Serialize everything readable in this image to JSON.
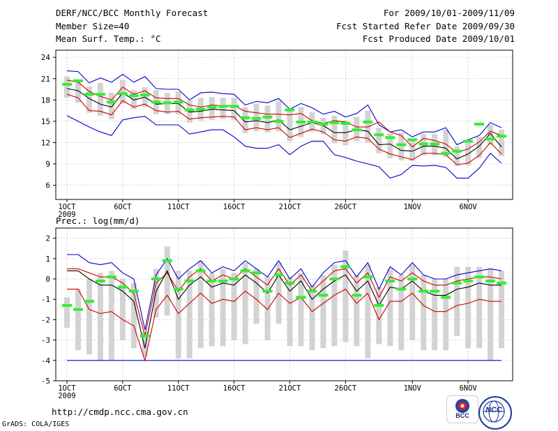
{
  "header": {
    "title": "DERF/NCC/BCC Monthly Forecast",
    "member_size": "Member Size=40",
    "variable": "Mean Surf. Temp.: °C",
    "period": "For 2009/10/01-2009/11/09",
    "started": "Fcst Started Refer Date 2009/09/30",
    "produced": "Fcst Produced Date 2009/10/01"
  },
  "footer": {
    "url": "http://cmdp.ncc.cma.gov.cn",
    "credit": "GrADS: COLA/IGES",
    "logo_bcc": "BCC",
    "logo_ncc": "NCC"
  },
  "colors": {
    "max": "#0000cc",
    "min": "#0000cc",
    "upper": "#cc0000",
    "lower": "#cc0000",
    "mean": "#000000",
    "box": "#d3d3d3",
    "marker": "#33ee33"
  },
  "chart_data": [
    {
      "type": "line",
      "title": "Mean Surf. Temp.: °C",
      "x": [
        1,
        2,
        3,
        4,
        5,
        6,
        7,
        8,
        9,
        10,
        11,
        12,
        13,
        14,
        15,
        16,
        17,
        18,
        19,
        20,
        21,
        22,
        23,
        24,
        25,
        26,
        27,
        28,
        29,
        30,
        31,
        32,
        33,
        34,
        35,
        36,
        37,
        38,
        39,
        40
      ],
      "xticks": [
        {
          "x": 1,
          "label": "1OCT"
        },
        {
          "x": 6,
          "label": "6OCT"
        },
        {
          "x": 11,
          "label": "11OCT"
        },
        {
          "x": 16,
          "label": "16OCT"
        },
        {
          "x": 21,
          "label": "21OCT"
        },
        {
          "x": 26,
          "label": "26OCT"
        },
        {
          "x": 32,
          "label": "1NOV"
        },
        {
          "x": 37,
          "label": "6NOV"
        }
      ],
      "xyear": "2009",
      "ylim": [
        4,
        25
      ],
      "yticks": [
        6,
        9,
        12,
        15,
        18,
        21,
        24
      ],
      "series": [
        {
          "name": "max",
          "values": [
            22.1,
            22.0,
            20.4,
            21.1,
            20.5,
            21.6,
            20.5,
            21.3,
            19.6,
            19.5,
            19.5,
            18.0,
            19.0,
            19.1,
            18.9,
            18.8,
            17.3,
            17.8,
            17.6,
            18.2,
            16.7,
            17.5,
            16.9,
            16.0,
            16.4,
            15.6,
            16.1,
            17.3,
            14.5,
            13.5,
            13.8,
            12.8,
            13.5,
            13.5,
            14.1,
            11.7,
            12.4,
            13.0,
            14.8,
            14.1
          ]
        },
        {
          "name": "upper",
          "values": [
            20.8,
            20.5,
            19.2,
            18.5,
            18.0,
            19.8,
            18.8,
            19.3,
            18.3,
            18.2,
            18.2,
            17.3,
            17.0,
            17.3,
            17.2,
            17.2,
            16.4,
            16.2,
            16.0,
            16.0,
            15.9,
            16.1,
            15.1,
            14.7,
            15.1,
            14.9,
            14.2,
            14.2,
            14.9,
            13.5,
            13.0,
            11.4,
            12.6,
            12.3,
            11.8,
            10.6,
            11.1,
            12.1,
            13.6,
            13.0
          ]
        },
        {
          "name": "mean",
          "values": [
            19.6,
            19.3,
            18.2,
            17.4,
            17.0,
            19.0,
            18.0,
            18.4,
            17.4,
            17.5,
            17.5,
            16.3,
            16.4,
            16.7,
            16.6,
            16.5,
            14.9,
            15.1,
            14.8,
            15.2,
            13.8,
            14.3,
            14.8,
            14.4,
            13.4,
            13.4,
            13.8,
            13.6,
            11.7,
            11.8,
            10.9,
            10.8,
            11.5,
            11.5,
            11.2,
            9.7,
            10.4,
            11.5,
            13.3,
            11.4
          ]
        },
        {
          "name": "lower",
          "values": [
            18.8,
            18.3,
            16.5,
            16.4,
            15.9,
            17.9,
            17.0,
            17.4,
            16.5,
            16.3,
            16.4,
            15.3,
            15.5,
            15.6,
            15.7,
            15.6,
            13.8,
            14.1,
            13.8,
            14.1,
            12.7,
            13.3,
            13.9,
            13.5,
            12.4,
            12.2,
            12.8,
            12.6,
            11.1,
            10.4,
            10.0,
            9.6,
            10.5,
            10.5,
            10.3,
            8.9,
            9.1,
            10.2,
            12.0,
            10.4
          ]
        },
        {
          "name": "min",
          "values": [
            15.8,
            15.0,
            14.2,
            13.5,
            13.0,
            15.2,
            15.5,
            15.7,
            14.5,
            14.5,
            14.5,
            13.2,
            13.5,
            13.8,
            13.8,
            12.8,
            11.5,
            11.2,
            11.2,
            11.7,
            10.3,
            11.5,
            12.2,
            12.2,
            10.3,
            9.9,
            9.4,
            9.0,
            8.6,
            7.0,
            7.5,
            8.8,
            8.7,
            8.8,
            8.5,
            7.0,
            7.0,
            8.4,
            10.5,
            9.1
          ]
        },
        {
          "name": "marker",
          "values": [
            20.2,
            20.7,
            18.8,
            18.8,
            17.7,
            18.9,
            18.6,
            18.7,
            17.7,
            17.6,
            17.7,
            16.6,
            16.7,
            17.0,
            17.1,
            17.1,
            15.5,
            15.4,
            15.6,
            15.0,
            16.6,
            14.9,
            14.9,
            14.6,
            14.8,
            14.7,
            13.8,
            14.9,
            13.1,
            12.7,
            11.7,
            12.4,
            11.8,
            11.8,
            10.5,
            10.8,
            12.2,
            14.6,
            12.5,
            12.9
          ]
        },
        {
          "name": "box_top",
          "values": [
            21.3,
            20.7,
            19.9,
            20.4,
            19.0,
            20.8,
            19.4,
            19.8,
            19.4,
            19.0,
            19.2,
            17.9,
            18.3,
            18.4,
            18.3,
            18.3,
            17.0,
            17.5,
            17.2,
            17.8,
            16.5,
            17.0,
            16.3,
            15.5,
            15.8,
            15.1,
            15.6,
            16.5,
            14.1,
            13.3,
            13.4,
            12.5,
            13.2,
            13.2,
            13.8,
            11.5,
            12.2,
            12.8,
            14.5,
            13.8
          ]
        },
        {
          "name": "box_bottom",
          "values": [
            18.3,
            17.6,
            16.2,
            15.8,
            15.3,
            17.5,
            16.7,
            17.0,
            16.0,
            16.0,
            16.0,
            14.8,
            15.1,
            15.2,
            15.3,
            15.2,
            13.3,
            13.6,
            13.4,
            13.6,
            12.2,
            12.8,
            13.5,
            13.2,
            11.9,
            11.6,
            12.2,
            12.0,
            10.5,
            9.8,
            9.5,
            9.4,
            10.2,
            10.2,
            10.0,
            8.7,
            8.8,
            9.8,
            11.7,
            10.1
          ]
        }
      ]
    },
    {
      "type": "line",
      "title": "Prec.: log(mm/d)",
      "x": [
        1,
        2,
        3,
        4,
        5,
        6,
        7,
        8,
        9,
        10,
        11,
        12,
        13,
        14,
        15,
        16,
        17,
        18,
        19,
        20,
        21,
        22,
        23,
        24,
        25,
        26,
        27,
        28,
        29,
        30,
        31,
        32,
        33,
        34,
        35,
        36,
        37,
        38,
        39,
        40
      ],
      "xticks": [
        {
          "x": 1,
          "label": "1OCT"
        },
        {
          "x": 6,
          "label": "6OCT"
        },
        {
          "x": 11,
          "label": "11OCT"
        },
        {
          "x": 16,
          "label": "16OCT"
        },
        {
          "x": 21,
          "label": "21OCT"
        },
        {
          "x": 26,
          "label": "26OCT"
        },
        {
          "x": 32,
          "label": "1NOV"
        },
        {
          "x": 37,
          "label": "6NOV"
        }
      ],
      "xyear": "2009",
      "ylim": [
        -5,
        2.5
      ],
      "yticks": [
        -5,
        -4,
        -3,
        -2,
        -1,
        0,
        1,
        2
      ],
      "series": [
        {
          "name": "max",
          "values": [
            1.2,
            1.2,
            0.8,
            0.7,
            0.8,
            0.3,
            0.0,
            -2.5,
            0.2,
            1.0,
            0.0,
            0.5,
            0.9,
            0.3,
            0.6,
            0.4,
            0.9,
            0.5,
            0.1,
            0.9,
            0.0,
            0.5,
            -0.4,
            0.3,
            0.8,
            0.9,
            0.1,
            0.8,
            -0.5,
            0.6,
            0.2,
            0.8,
            0.2,
            0.0,
            0.0,
            0.2,
            0.3,
            0.4,
            0.5,
            0.4
          ]
        },
        {
          "name": "upper",
          "values": [
            0.5,
            0.5,
            0.3,
            0.1,
            0.1,
            -0.2,
            -0.7,
            -2.8,
            -0.2,
            0.3,
            -0.6,
            0.1,
            0.5,
            -0.1,
            0.2,
            0.0,
            0.5,
            0.1,
            -0.3,
            0.5,
            -0.3,
            0.2,
            -0.6,
            -0.1,
            0.4,
            0.5,
            -0.2,
            0.3,
            -0.9,
            0.1,
            -0.1,
            0.3,
            -0.1,
            -0.3,
            -0.3,
            -0.1,
            0.0,
            0.1,
            0.1,
            0.0
          ]
        },
        {
          "name": "mean",
          "values": [
            0.4,
            0.4,
            0.0,
            -0.3,
            -0.3,
            -0.6,
            -1.1,
            -3.4,
            -0.6,
            0.4,
            -1.0,
            -0.3,
            0.1,
            -0.4,
            -0.2,
            -0.3,
            0.2,
            -0.2,
            -0.7,
            0.2,
            -0.6,
            -0.1,
            -1.0,
            -0.5,
            -0.1,
            0.2,
            -0.6,
            -0.1,
            -1.3,
            -0.4,
            -0.5,
            -0.1,
            -0.6,
            -0.8,
            -0.8,
            -0.5,
            -0.4,
            -0.2,
            -0.3,
            -0.3
          ]
        },
        {
          "name": "lower",
          "values": [
            -0.5,
            -0.5,
            -1.5,
            -1.7,
            -1.6,
            -2.0,
            -2.3,
            -4.0,
            -1.5,
            -0.8,
            -1.7,
            -1.2,
            -0.7,
            -1.2,
            -1.0,
            -1.1,
            -0.6,
            -1.0,
            -1.5,
            -0.7,
            -1.2,
            -0.9,
            -1.6,
            -1.2,
            -0.8,
            -0.5,
            -1.2,
            -0.7,
            -2.0,
            -1.1,
            -1.1,
            -0.7,
            -1.3,
            -1.6,
            -1.6,
            -1.3,
            -1.2,
            -1.0,
            -1.1,
            -1.1
          ]
        },
        {
          "name": "min",
          "values": [
            -4.0,
            -4.0,
            -4.0,
            -4.0,
            -4.0,
            -4.0,
            -4.0,
            -4.0,
            -4.0,
            -4.0,
            -4.0,
            -4.0,
            -4.0,
            -4.0,
            -4.0,
            -4.0,
            -4.0,
            -4.0,
            -4.0,
            -4.0,
            -4.0,
            -4.0,
            -4.0,
            -4.0,
            -4.0,
            -4.0,
            -4.0,
            -4.0,
            -4.0,
            -4.0,
            -4.0,
            -4.0,
            -4.0,
            -4.0,
            -4.0,
            -4.0,
            -4.0,
            -4.0,
            -4.0,
            -4.0
          ]
        },
        {
          "name": "marker",
          "values": [
            -1.3,
            -1.5,
            -1.1,
            -0.1,
            0.1,
            -0.4,
            -0.6,
            -2.8,
            0.0,
            0.9,
            -0.5,
            -0.1,
            0.4,
            -0.1,
            -0.1,
            0.0,
            0.4,
            0.3,
            -0.6,
            0.2,
            -0.2,
            -0.9,
            -0.6,
            -0.8,
            0.0,
            0.6,
            -0.8,
            0.1,
            -1.3,
            -0.1,
            -0.5,
            0.0,
            -0.6,
            -0.6,
            -0.9,
            -0.2,
            -0.1,
            0.1,
            -0.1,
            -0.2
          ]
        },
        {
          "name": "box_top",
          "values": [
            -0.9,
            -0.5,
            0.0,
            0.3,
            0.4,
            0.0,
            -0.2,
            -2.6,
            0.5,
            1.6,
            0.4,
            0.4,
            0.9,
            0.3,
            0.5,
            0.3,
            0.8,
            0.5,
            0.1,
            0.8,
            0.1,
            0.3,
            -0.3,
            0.2,
            0.7,
            1.4,
            0.2,
            0.7,
            -0.4,
            0.5,
            0.2,
            0.7,
            0.2,
            0.0,
            0.0,
            0.6,
            0.6,
            0.6,
            0.5,
            0.4
          ]
        },
        {
          "name": "box_bottom",
          "values": [
            -2.4,
            -3.5,
            -3.7,
            -4.0,
            -4.0,
            -3.0,
            -3.4,
            -3.8,
            -1.9,
            -1.8,
            -3.9,
            -3.9,
            -3.4,
            -3.3,
            -3.3,
            -3.0,
            -3.2,
            -2.2,
            -3.0,
            -2.2,
            -3.3,
            -3.3,
            -3.5,
            -3.4,
            -3.3,
            -3.1,
            -3.3,
            -3.9,
            -3.2,
            -3.3,
            -3.5,
            -3.0,
            -3.5,
            -3.5,
            -3.5,
            -2.8,
            -3.4,
            -3.4,
            -4.0,
            -3.4
          ]
        }
      ]
    }
  ]
}
